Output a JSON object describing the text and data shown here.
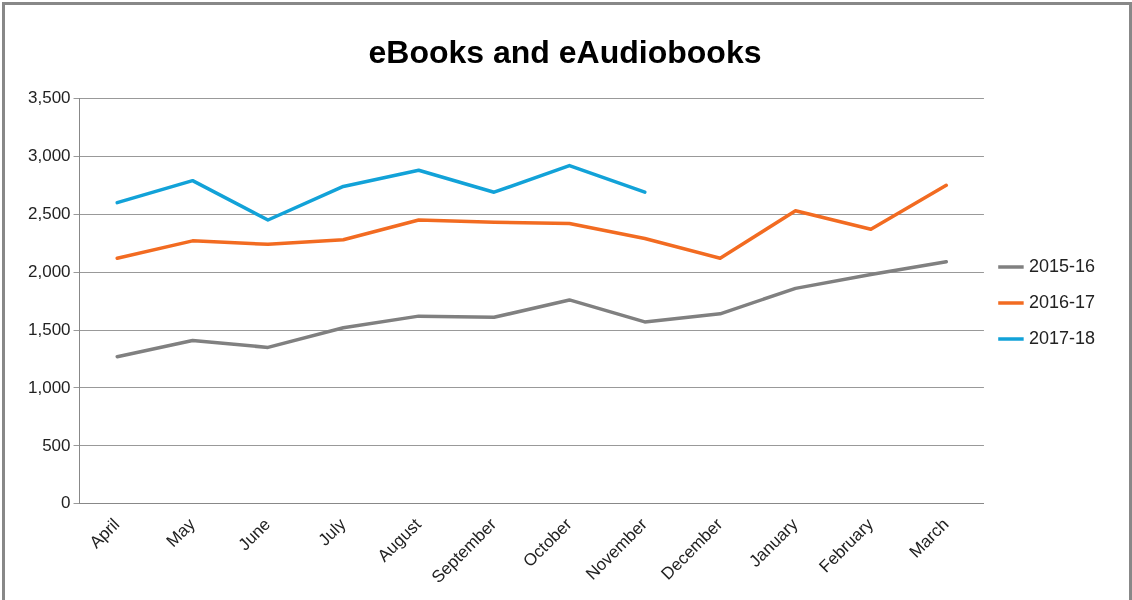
{
  "chart_data": {
    "type": "line",
    "title": "eBooks and eAudiobooks",
    "categories": [
      "April",
      "May",
      "June",
      "July",
      "August",
      "September",
      "October",
      "November",
      "December",
      "January",
      "February",
      "March"
    ],
    "series": [
      {
        "name": "2015-16",
        "color": "#808080",
        "values": [
          1270,
          1410,
          1350,
          1520,
          1620,
          1610,
          1760,
          1570,
          1640,
          1860,
          1980,
          2090
        ]
      },
      {
        "name": "2016-17",
        "color": "#f26b21",
        "values": [
          2120,
          2270,
          2240,
          2280,
          2450,
          2430,
          2420,
          2290,
          2120,
          2530,
          2370,
          2750
        ]
      },
      {
        "name": "2017-18",
        "color": "#12a2d8",
        "values": [
          2600,
          2790,
          2450,
          2740,
          2880,
          2690,
          2920,
          2690,
          null,
          null,
          null,
          null
        ]
      }
    ],
    "ylim": [
      0,
      3500
    ],
    "yticks": [
      0,
      500,
      {
        "value": 1000,
        "label": "1,000"
      },
      {
        "value": 1500,
        "label": "1,500"
      },
      {
        "value": 2000,
        "label": "2,000"
      },
      {
        "value": 2500,
        "label": "2,500"
      },
      {
        "value": 3000,
        "label": "3,000"
      },
      {
        "value": 3500,
        "label": "3,500"
      }
    ],
    "grid": "y",
    "legend": "right",
    "marker": "none",
    "line_style": "solid"
  }
}
